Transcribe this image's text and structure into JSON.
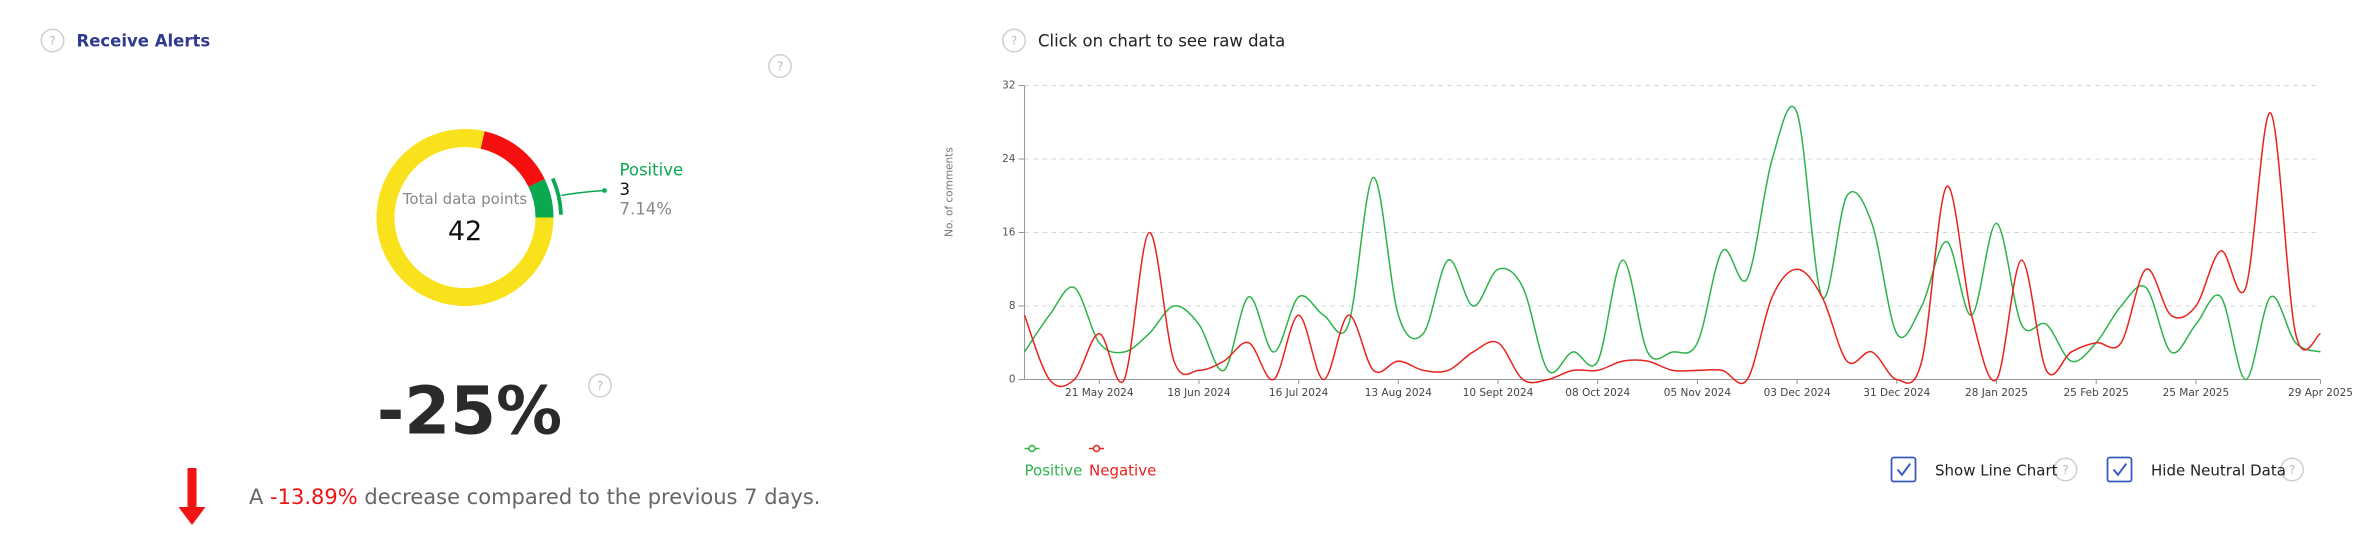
{
  "header": {
    "title": "Receive Alerts"
  },
  "help_icon": "?",
  "chart_data": [
    {
      "type": "pie",
      "donut": true,
      "center_label": "Total data points",
      "total": 42,
      "categories": [
        null,
        null,
        "Positive"
      ],
      "values": [
        33,
        6,
        3
      ],
      "colors": [
        "#f9e21b",
        "#f50f0f",
        "#0aa84f"
      ],
      "percent_labels": [
        null,
        null,
        "7.14%"
      ]
    },
    {
      "type": "line",
      "hint": "Click on chart to see raw data",
      "ylabel": "No. of comments",
      "x": [
        "2024-04-30",
        "2024-05-07",
        "2024-05-14",
        "2024-05-21",
        "2024-05-28",
        "2024-06-04",
        "2024-06-11",
        "2024-06-18",
        "2024-06-25",
        "2024-07-02",
        "2024-07-09",
        "2024-07-16",
        "2024-07-23",
        "2024-07-30",
        "2024-08-06",
        "2024-08-13",
        "2024-08-20",
        "2024-08-27",
        "2024-09-03",
        "2024-09-10",
        "2024-09-17",
        "2024-09-24",
        "2024-10-01",
        "2024-10-08",
        "2024-10-15",
        "2024-10-22",
        "2024-10-29",
        "2024-11-05",
        "2024-11-12",
        "2024-11-19",
        "2024-11-26",
        "2024-12-03",
        "2024-12-10",
        "2024-12-17",
        "2024-12-24",
        "2024-12-31",
        "2025-01-07",
        "2025-01-14",
        "2025-01-21",
        "2025-01-28",
        "2025-02-04",
        "2025-02-11",
        "2025-02-18",
        "2025-02-25",
        "2025-03-04",
        "2025-03-11",
        "2025-03-18",
        "2025-03-25",
        "2025-04-01",
        "2025-04-08",
        "2025-04-15",
        "2025-04-22",
        "2025-04-29"
      ],
      "series": [
        {
          "name": "Positive",
          "color": "#2db34a",
          "values": [
            3,
            7,
            10,
            4,
            3,
            5,
            8,
            6,
            1,
            9,
            3,
            9,
            7,
            6,
            22,
            7,
            5,
            13,
            8,
            12,
            10,
            1,
            3,
            2,
            13,
            3,
            3,
            4,
            14,
            11,
            24,
            29,
            9,
            20,
            17,
            5,
            8,
            15,
            7,
            17,
            6,
            6,
            2,
            4,
            8,
            10,
            3,
            6,
            9,
            0,
            9,
            4,
            3
          ]
        },
        {
          "name": "Negative",
          "color": "#e8231f",
          "values": [
            7,
            0,
            0,
            5,
            0,
            16,
            2,
            1,
            2,
            4,
            0,
            7,
            0,
            7,
            1,
            2,
            1,
            1,
            3,
            4,
            0,
            0,
            1,
            1,
            2,
            2,
            1,
            1,
            1,
            0,
            9,
            12,
            9,
            2,
            3,
            0,
            2,
            21,
            7,
            0,
            13,
            1,
            3,
            4,
            4,
            12,
            7,
            8,
            14,
            10,
            29,
            5,
            5
          ]
        }
      ],
      "xlim": [
        "2024-04-30",
        "2025-04-29"
      ],
      "xticks": [
        {
          "value": "2024-05-21",
          "label": "21 May 2024"
        },
        {
          "value": "2024-06-18",
          "label": "18 Jun 2024"
        },
        {
          "value": "2024-07-16",
          "label": "16 Jul 2024"
        },
        {
          "value": "2024-08-13",
          "label": "13 Aug 2024"
        },
        {
          "value": "2024-09-10",
          "label": "10 Sept 2024"
        },
        {
          "value": "2024-10-08",
          "label": "08 Oct 2024"
        },
        {
          "value": "2024-11-05",
          "label": "05 Nov 2024"
        },
        {
          "value": "2024-12-03",
          "label": "03 Dec 2024"
        },
        {
          "value": "2024-12-31",
          "label": "31 Dec 2024"
        },
        {
          "value": "2025-01-28",
          "label": "28 Jan 2025"
        },
        {
          "value": "2025-02-25",
          "label": "25 Feb 2025"
        },
        {
          "value": "2025-03-25",
          "label": "25 Mar 2025"
        },
        {
          "value": "2025-04-29",
          "label": "29 Apr 2025"
        }
      ],
      "ylim": [
        0,
        32
      ],
      "yticks": [
        0,
        8,
        16,
        24,
        32
      ],
      "grid": true
    }
  ],
  "summary": {
    "change_label": "-25%",
    "sentence_prefix": "A ",
    "change_detail": "-13.89%",
    "sentence_suffix": " decrease compared to the previous 7 days."
  },
  "controls": [
    {
      "label": "Show Line Chart",
      "checked": true
    },
    {
      "label": "Hide Neutral Data",
      "checked": true
    }
  ]
}
